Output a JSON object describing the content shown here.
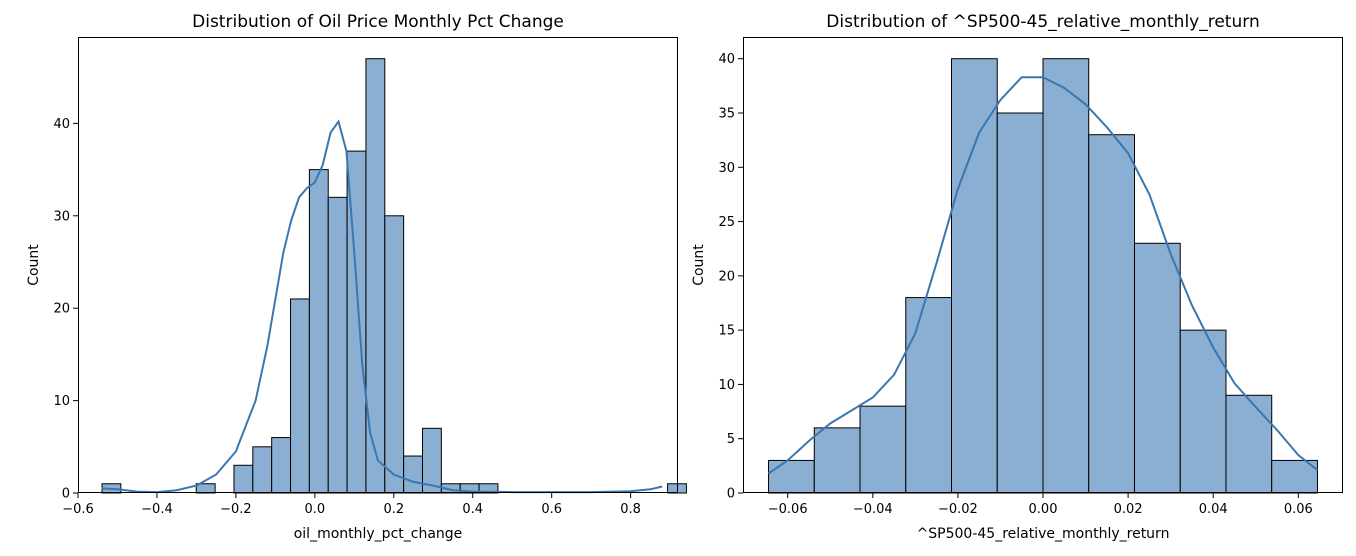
{
  "chart_data": [
    {
      "type": "histogram",
      "title": "Distribution of Oil Price Monthly Pct Change",
      "xlabel": "oil_monthly_pct_change",
      "ylabel": "Count",
      "xlim": [
        -0.6,
        0.92
      ],
      "ylim": [
        0,
        49.35
      ],
      "xticks": [
        -0.6,
        -0.4,
        -0.2,
        0.0,
        0.2,
        0.4,
        0.6,
        0.8
      ],
      "xtick_labels": [
        "−0.6",
        "−0.4",
        "−0.2",
        "0.0",
        "0.2",
        "0.4",
        "0.6",
        "0.8"
      ],
      "yticks": [
        0,
        10,
        20,
        30,
        40
      ],
      "ytick_labels": [
        "0",
        "10",
        "20",
        "30",
        "40"
      ],
      "bin_start": -0.5392,
      "bin_width": 0.04776,
      "counts": [
        1,
        0,
        0,
        0,
        0,
        1,
        0,
        3,
        5,
        6,
        21,
        35,
        32,
        37,
        47,
        30,
        4,
        7,
        1,
        1,
        1,
        0,
        0,
        0,
        0,
        0,
        0,
        0,
        0,
        0,
        1
      ],
      "kde": [
        [
          -0.54,
          0.5
        ],
        [
          -0.5,
          0.4
        ],
        [
          -0.45,
          0.15
        ],
        [
          -0.4,
          0.1
        ],
        [
          -0.35,
          0.3
        ],
        [
          -0.3,
          0.8
        ],
        [
          -0.25,
          2.0
        ],
        [
          -0.2,
          4.5
        ],
        [
          -0.15,
          10
        ],
        [
          -0.12,
          16
        ],
        [
          -0.1,
          21
        ],
        [
          -0.08,
          26
        ],
        [
          -0.06,
          29.5
        ],
        [
          -0.04,
          32
        ],
        [
          -0.02,
          33
        ],
        [
          0.0,
          33.6
        ],
        [
          0.02,
          35.5
        ],
        [
          0.04,
          39
        ],
        [
          0.06,
          40.2
        ],
        [
          0.08,
          37
        ],
        [
          0.1,
          26
        ],
        [
          0.12,
          14
        ],
        [
          0.14,
          6.5
        ],
        [
          0.16,
          3.5
        ],
        [
          0.2,
          2.0
        ],
        [
          0.25,
          1.2
        ],
        [
          0.3,
          0.8
        ],
        [
          0.35,
          0.3
        ],
        [
          0.4,
          0.15
        ],
        [
          0.5,
          0.1
        ],
        [
          0.6,
          0.1
        ],
        [
          0.7,
          0.1
        ],
        [
          0.8,
          0.2
        ],
        [
          0.85,
          0.4
        ],
        [
          0.88,
          0.7
        ]
      ],
      "bar_color": "#8aafd2",
      "line_color": "#3a77b0"
    },
    {
      "type": "histogram",
      "title": "Distribution of ^SP500-45_relative_monthly_return",
      "xlabel": "^SP500-45_relative_monthly_return",
      "ylabel": "Count",
      "xlim": [
        -0.0705,
        0.0705
      ],
      "ylim": [
        0,
        42
      ],
      "xticks": [
        -0.06,
        -0.04,
        -0.02,
        0.0,
        0.02,
        0.04,
        0.06
      ],
      "xtick_labels": [
        "−0.06",
        "−0.04",
        "−0.02",
        "0.00",
        "0.02",
        "0.04",
        "0.06"
      ],
      "yticks": [
        0,
        5,
        10,
        15,
        20,
        25,
        30,
        35,
        40
      ],
      "ytick_labels": [
        "0",
        "5",
        "10",
        "15",
        "20",
        "25",
        "30",
        "35",
        "40"
      ],
      "bin_start": -0.0645,
      "bin_width": 0.01075,
      "counts": [
        3,
        6,
        8,
        18,
        40,
        35,
        40,
        33,
        23,
        15,
        9,
        3
      ],
      "kde": [
        [
          -0.0645,
          1.8
        ],
        [
          -0.06,
          3.0
        ],
        [
          -0.055,
          4.8
        ],
        [
          -0.05,
          6.4
        ],
        [
          -0.045,
          7.6
        ],
        [
          -0.04,
          8.8
        ],
        [
          -0.035,
          10.9
        ],
        [
          -0.03,
          14.7
        ],
        [
          -0.025,
          21.2
        ],
        [
          -0.02,
          28.0
        ],
        [
          -0.015,
          33.2
        ],
        [
          -0.01,
          36.2
        ],
        [
          -0.005,
          38.3
        ],
        [
          0.0,
          38.3
        ],
        [
          0.005,
          37.3
        ],
        [
          0.01,
          35.8
        ],
        [
          0.015,
          33.7
        ],
        [
          0.02,
          31.3
        ],
        [
          0.025,
          27.5
        ],
        [
          0.03,
          22.0
        ],
        [
          0.035,
          17.3
        ],
        [
          0.04,
          13.4
        ],
        [
          0.045,
          10.1
        ],
        [
          0.05,
          7.9
        ],
        [
          0.055,
          5.8
        ],
        [
          0.06,
          3.5
        ],
        [
          0.0645,
          2.1
        ]
      ],
      "bar_color": "#8aafd2",
      "line_color": "#3a77b0"
    }
  ]
}
